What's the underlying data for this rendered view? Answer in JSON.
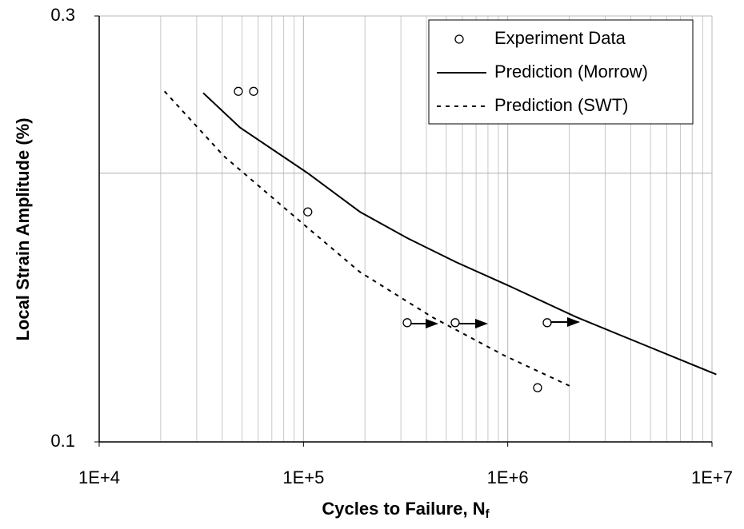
{
  "chart_data": {
    "type": "scatter",
    "xlabel": "Cycles to Failure, N",
    "xlabel_sub": "f",
    "ylabel": "Local Strain Amplitude (%)",
    "xscale": "log",
    "yscale": "log",
    "xlim": [
      10000,
      10000000
    ],
    "ylim": [
      0.1,
      0.3
    ],
    "xticks": [
      {
        "value": 10000,
        "label": "1E+4"
      },
      {
        "value": 100000,
        "label": "1E+5"
      },
      {
        "value": 1000000,
        "label": "1E+6"
      },
      {
        "value": 10000000,
        "label": "1E+7"
      }
    ],
    "yticks": [
      0.1,
      0.3
    ],
    "grid": true,
    "minor_grid": true,
    "legend": "upper right",
    "series": [
      {
        "name": "Experiment Data",
        "style": "markers",
        "color": "#000000",
        "x": [
          48000,
          57000,
          105000,
          322000,
          553000,
          1560000,
          1400000
        ],
        "values": [
          0.247,
          0.247,
          0.181,
          0.136,
          0.136,
          0.136,
          0.115
        ]
      },
      {
        "name": "Prediction (Morrow)",
        "style": "solid",
        "color": "#000000",
        "x": [
          32300,
          48900,
          105000,
          189000,
          325000,
          558000,
          1050000,
          2160000,
          4440000,
          10500000
        ],
        "values": [
          0.246,
          0.225,
          0.2,
          0.181,
          0.169,
          0.159,
          0.149,
          0.138,
          0.129,
          0.119
        ]
      },
      {
        "name": "Prediction (SWT)",
        "style": "dashed",
        "color": "#000000",
        "x": [
          20900,
          40800,
          101000,
          189000,
          426000,
          959000,
          2100000
        ],
        "values": [
          0.247,
          0.209,
          0.175,
          0.155,
          0.138,
          0.125,
          0.115
        ]
      }
    ]
  }
}
